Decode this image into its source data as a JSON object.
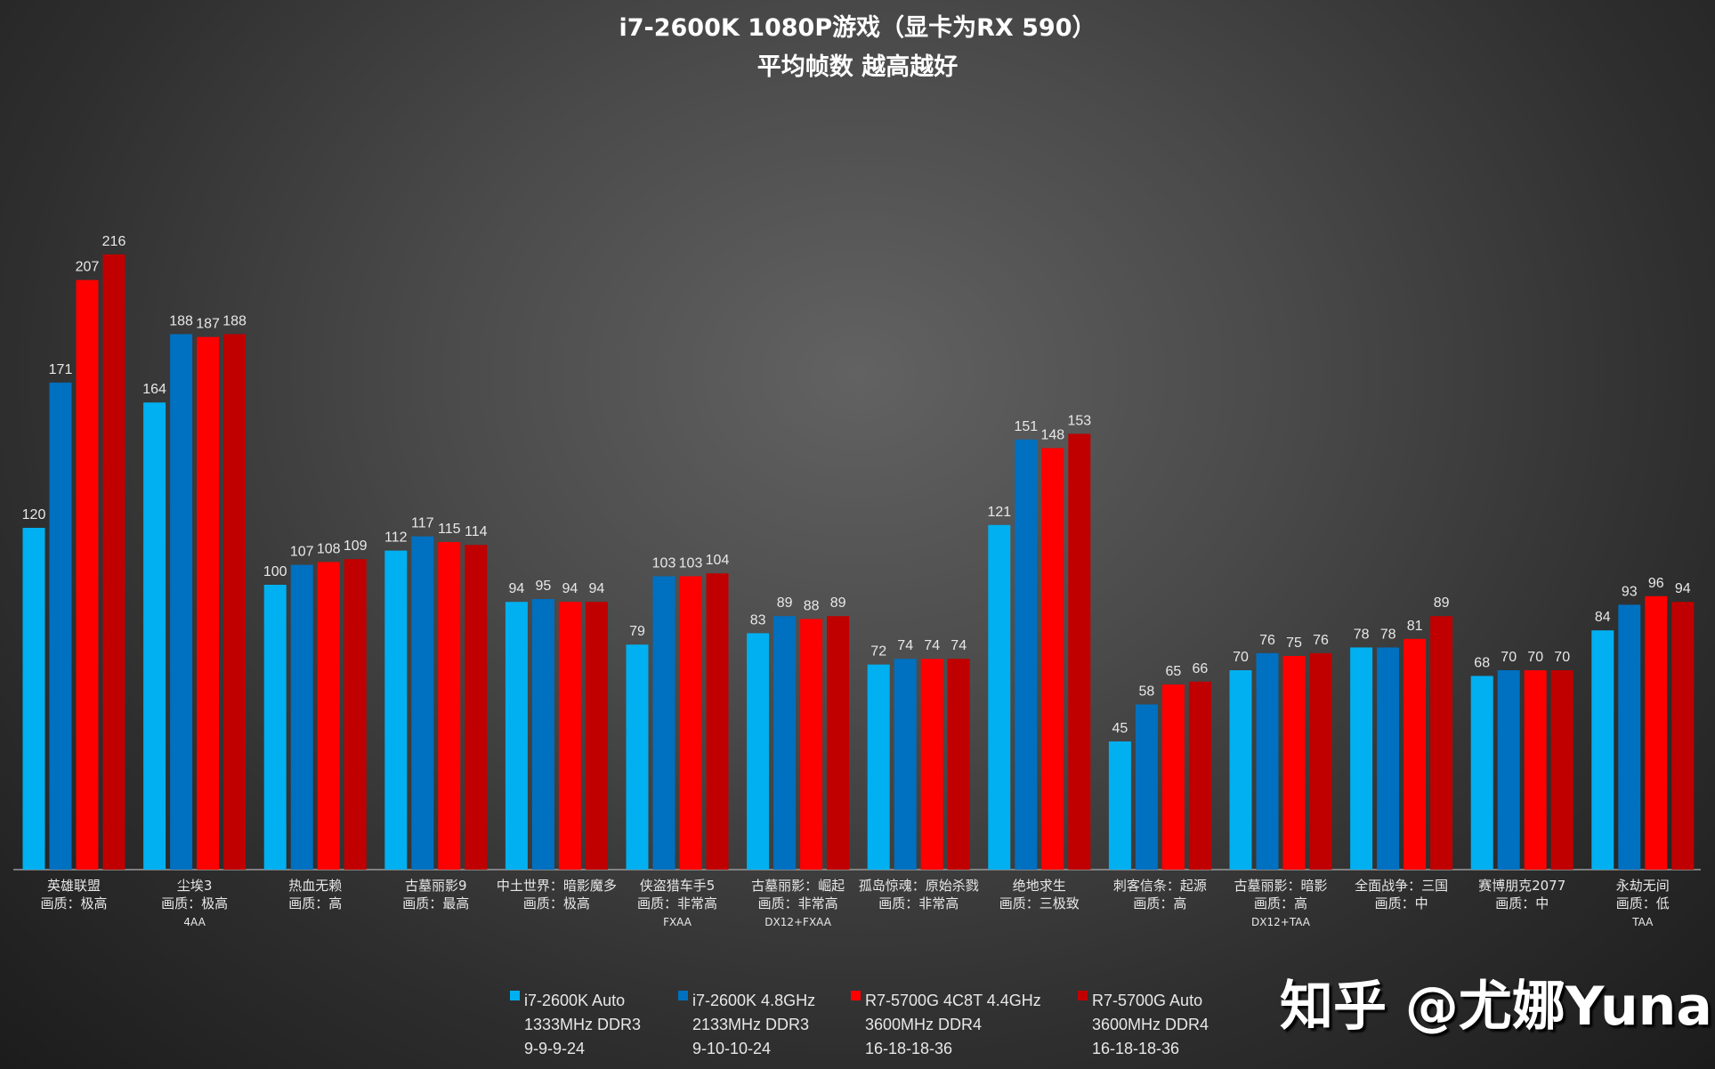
{
  "chart_data": {
    "type": "bar",
    "title": "i7-2600K 1080P游戏（显卡为RX 590）",
    "subtitle": "平均帧数 越高越好",
    "categories": [
      [
        "英雄联盟",
        "画质：极高",
        ""
      ],
      [
        "尘埃3",
        "画质：极高",
        "4AA"
      ],
      [
        "热血无赖",
        "画质：高",
        ""
      ],
      [
        "古墓丽影9",
        "画质：最高",
        ""
      ],
      [
        "中土世界：暗影魔多",
        "画质：极高",
        ""
      ],
      [
        "侠盗猎车手5",
        "画质：非常高",
        "FXAA"
      ],
      [
        "古墓丽影：崛起",
        "画质：非常高",
        "DX12+FXAA"
      ],
      [
        "孤岛惊魂：原始杀戮",
        "画质：非常高",
        ""
      ],
      [
        "绝地求生",
        "画质：三极致",
        ""
      ],
      [
        "刺客信条：起源",
        "画质：高",
        ""
      ],
      [
        "古墓丽影：暗影",
        "画质：高",
        "DX12+TAA"
      ],
      [
        "全面战争：三国",
        "画质：中",
        ""
      ],
      [
        "赛博朋克2077",
        "画质：中",
        ""
      ],
      [
        "永劫无间",
        "画质：低",
        "TAA"
      ]
    ],
    "series": [
      {
        "name": [
          "i7-2600K Auto",
          "1333MHz DDR3",
          "9-9-9-24"
        ],
        "color": "#00b0f0",
        "values": [
          120,
          164,
          100,
          112,
          94,
          79,
          83,
          72,
          121,
          45,
          70,
          78,
          68,
          84
        ]
      },
      {
        "name": [
          "i7-2600K 4.8GHz",
          "2133MHz DDR3",
          "9-10-10-24"
        ],
        "color": "#0070c0",
        "values": [
          171,
          188,
          107,
          117,
          95,
          103,
          89,
          74,
          151,
          58,
          76,
          78,
          70,
          93
        ]
      },
      {
        "name": [
          "R7-5700G 4C8T 4.4GHz",
          "3600MHz DDR4",
          "16-18-18-36"
        ],
        "color": "#ff0000",
        "values": [
          207,
          187,
          108,
          115,
          94,
          103,
          88,
          74,
          148,
          65,
          75,
          81,
          70,
          96
        ]
      },
      {
        "name": [
          "R7-5700G Auto",
          "3600MHz DDR4",
          "16-18-18-36"
        ],
        "color": "#c00000",
        "values": [
          216,
          188,
          109,
          114,
          94,
          104,
          89,
          74,
          153,
          66,
          76,
          89,
          70,
          94
        ]
      }
    ],
    "ylim": [
      0,
      300
    ],
    "grid": false,
    "legend": "bottom"
  },
  "watermark": "知乎 @尤娜Yuna"
}
